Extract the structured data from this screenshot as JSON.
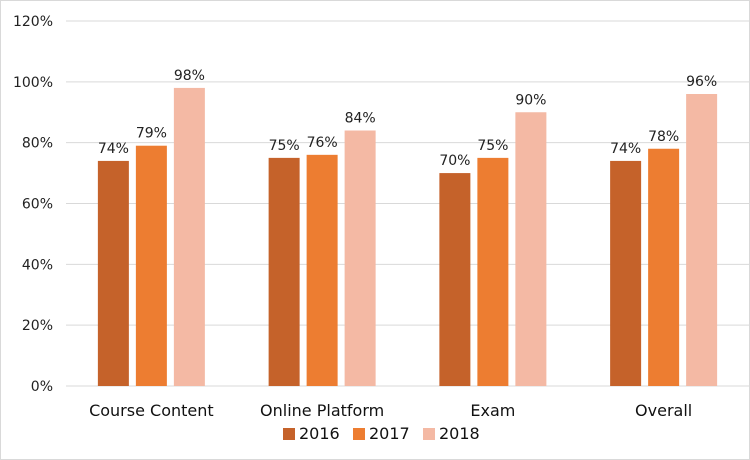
{
  "chart_data": {
    "type": "bar",
    "categories": [
      "Course Content",
      "Online Platform",
      "Exam",
      "Overall"
    ],
    "series": [
      {
        "name": "2016",
        "values": [
          74,
          75,
          70,
          74
        ],
        "color": "#C5622A"
      },
      {
        "name": "2017",
        "values": [
          79,
          76,
          75,
          78
        ],
        "color": "#ED7D31"
      },
      {
        "name": "2018",
        "values": [
          98,
          84,
          90,
          96
        ],
        "color": "#F4B9A4"
      }
    ],
    "value_format": "percent",
    "ylim": [
      0,
      120
    ],
    "yticks": [
      0,
      20,
      40,
      60,
      80,
      100,
      120
    ],
    "tick_labels": [
      "0%",
      "20%",
      "40%",
      "60%",
      "80%",
      "100%",
      "120%"
    ],
    "data_labels": [
      [
        "74%",
        "75%",
        "70%",
        "74%"
      ],
      [
        "79%",
        "76%",
        "75%",
        "78%"
      ],
      [
        "98%",
        "84%",
        "90%",
        "96%"
      ]
    ],
    "grid": true,
    "legend": "bottom",
    "axis_line_color": "#d9d9d9",
    "grid_color": "#d9d9d9"
  }
}
